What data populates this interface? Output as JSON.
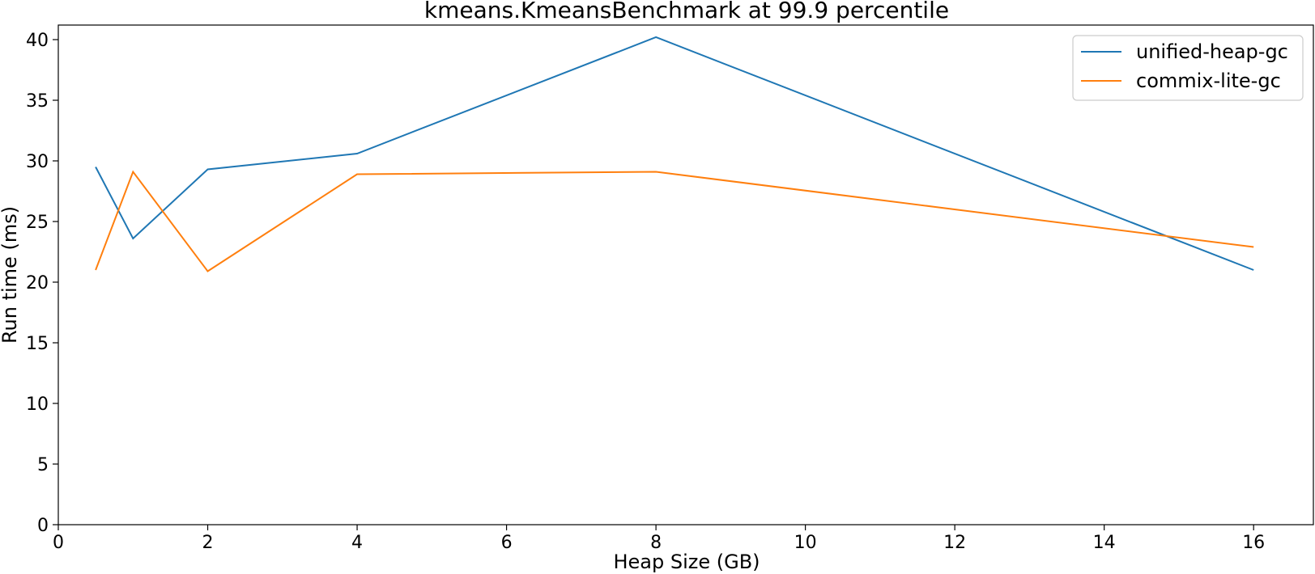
{
  "chart_data": {
    "type": "line",
    "title": "kmeans.KmeansBenchmark at 99.9 percentile",
    "xlabel": "Heap Size (GB)",
    "ylabel": "Run time (ms)",
    "xlim": [
      0,
      16.8
    ],
    "ylim": [
      0,
      41.2
    ],
    "xticks": [
      0,
      2,
      4,
      6,
      8,
      10,
      12,
      14,
      16
    ],
    "yticks": [
      0,
      5,
      10,
      15,
      20,
      25,
      30,
      35,
      40
    ],
    "grid": false,
    "legend_position": "top-right",
    "series": [
      {
        "name": "unified-heap-gc",
        "color": "#1f77b4",
        "x": [
          0.5,
          1,
          2,
          4,
          8,
          16
        ],
        "values": [
          29.5,
          23.6,
          29.3,
          30.6,
          40.2,
          21.0
        ]
      },
      {
        "name": "commix-lite-gc",
        "color": "#ff7f0e",
        "x": [
          0.5,
          1,
          2,
          4,
          8,
          16
        ],
        "values": [
          21.0,
          29.1,
          20.9,
          28.9,
          29.1,
          22.9
        ]
      }
    ]
  }
}
